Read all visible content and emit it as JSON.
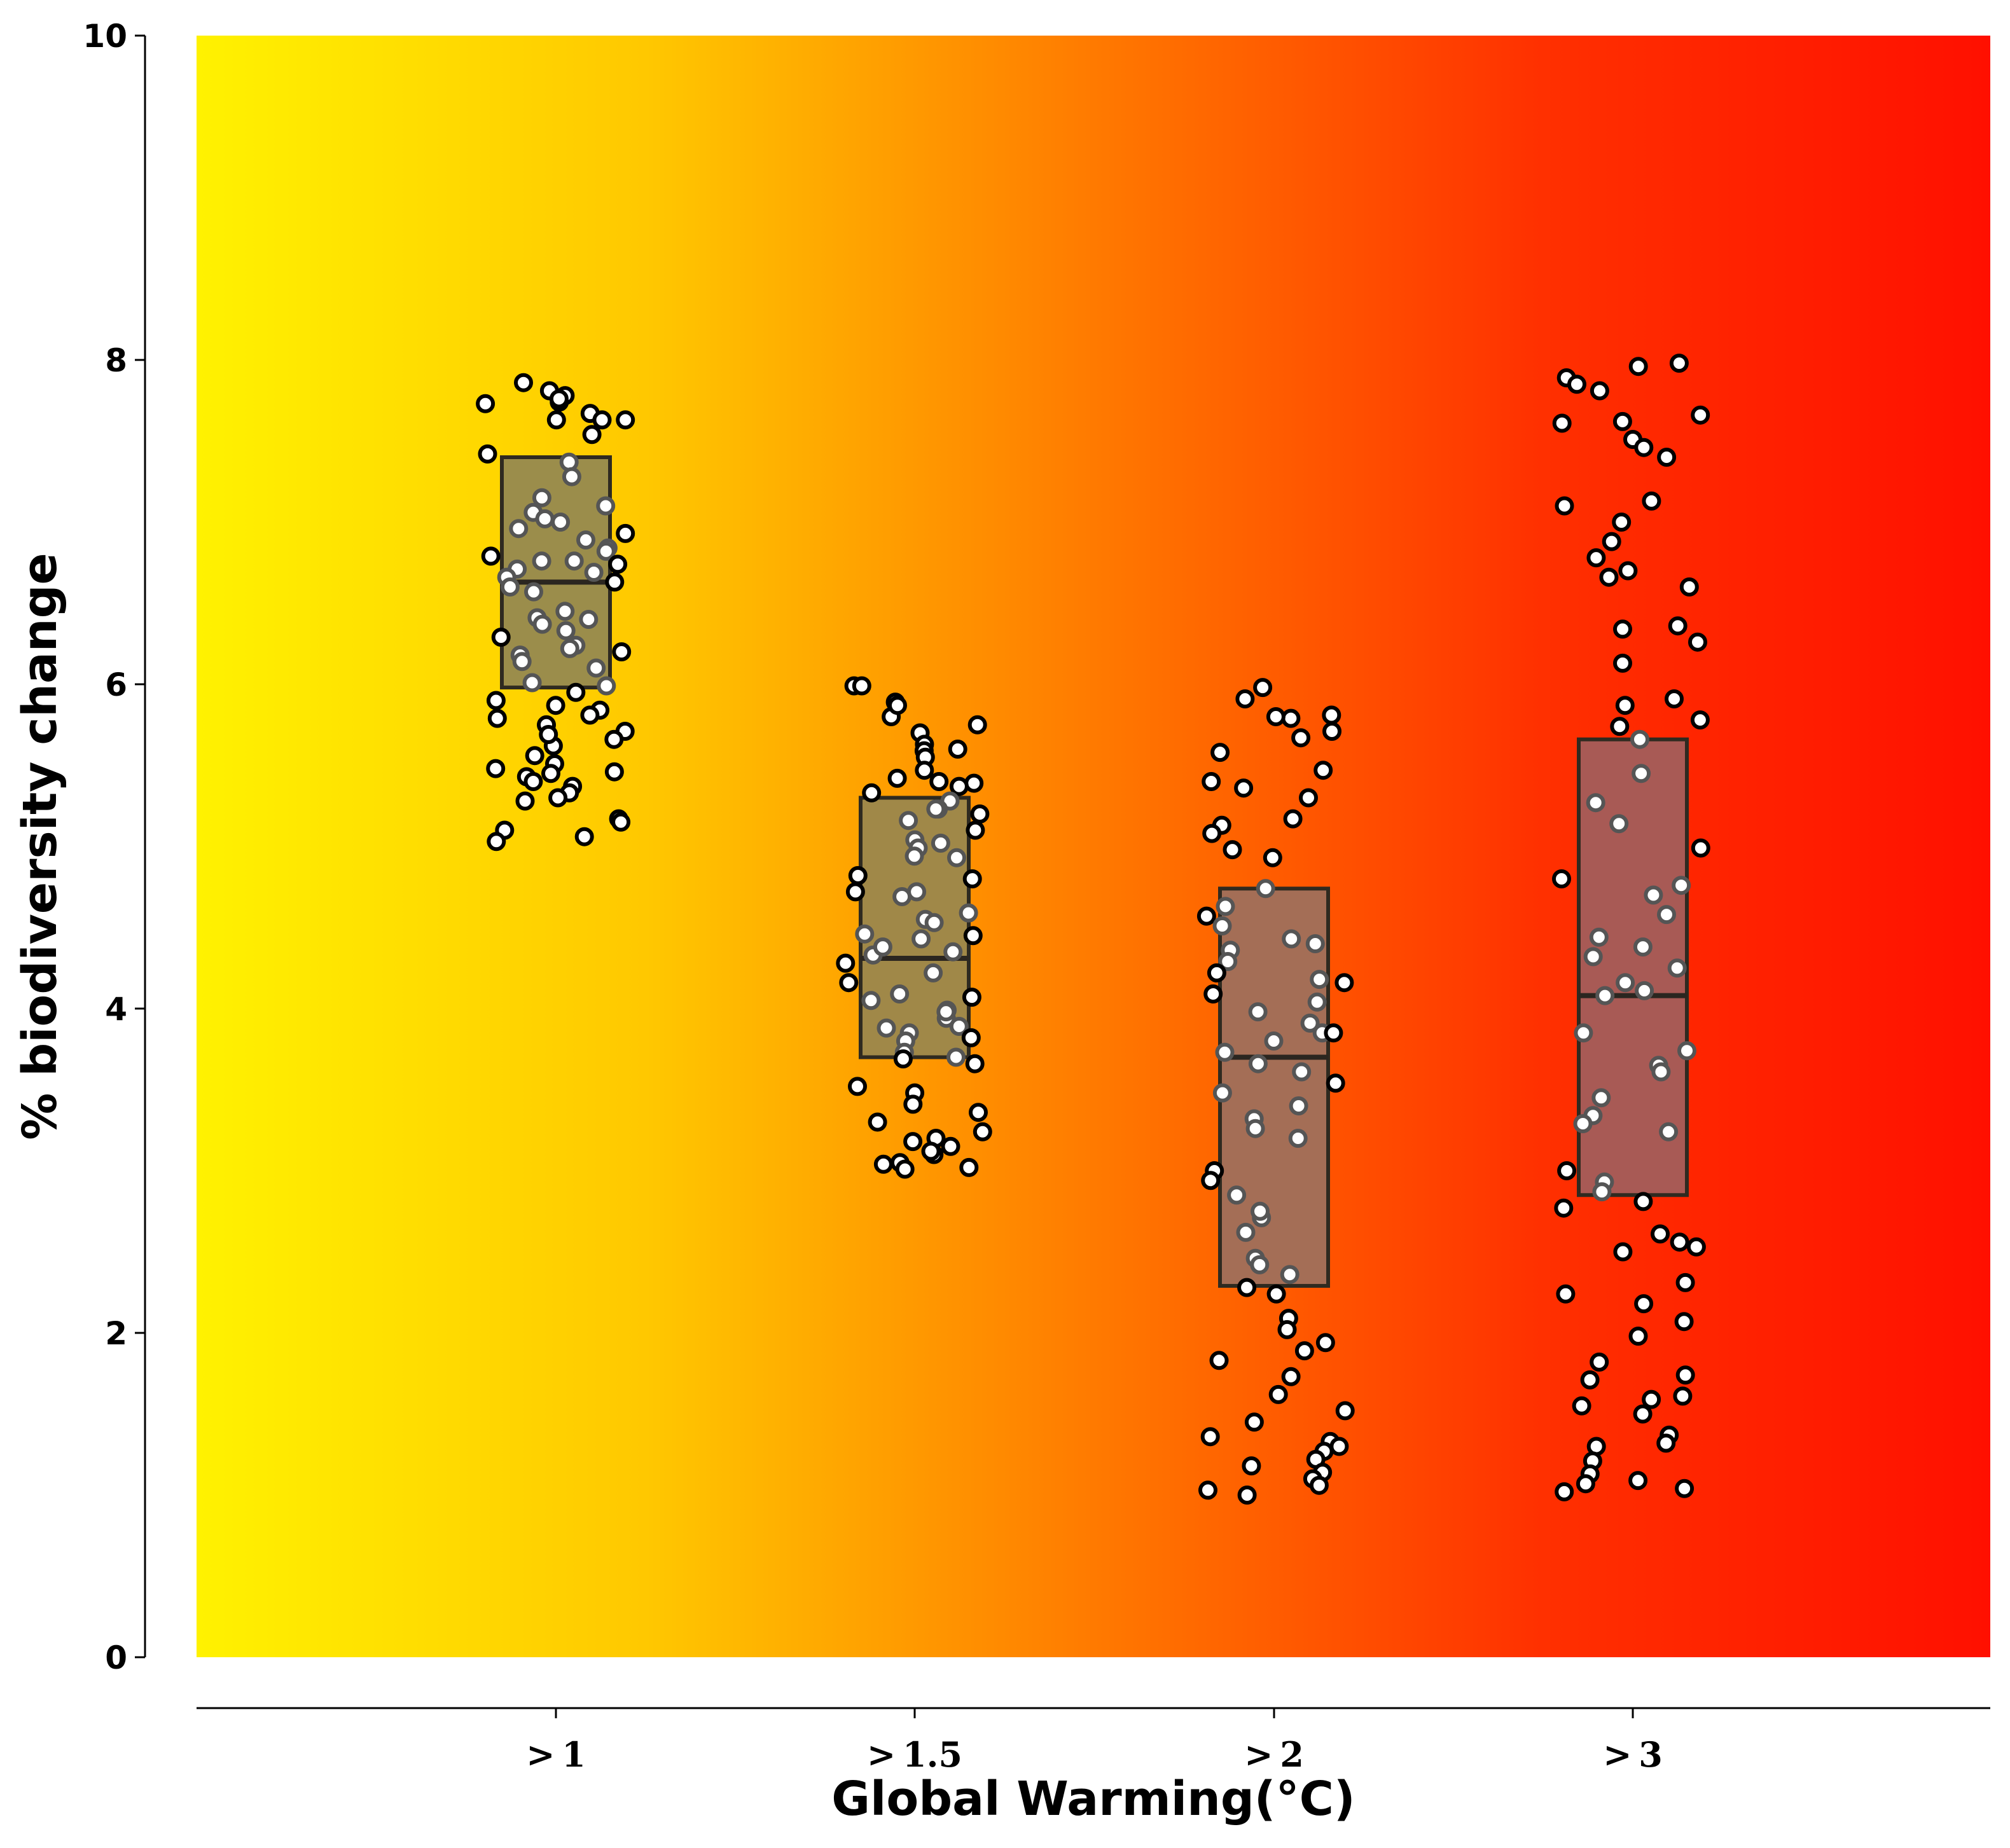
{
  "chart_data": {
    "type": "box+strip",
    "title": "",
    "xlabel": "Global Warming(°C)",
    "ylabel": "% biodiversity change",
    "ylim": [
      0,
      10
    ],
    "yticks": [
      "0",
      "2",
      "4",
      "6",
      "8",
      "10"
    ],
    "categories": [
      "> 1",
      "> 1.5",
      "> 2",
      "> 3"
    ],
    "background_gradient": [
      "#fff200",
      "#ffc800",
      "#ff7a00",
      "#ff3000",
      "#ff1000"
    ],
    "grid": false,
    "boxes": [
      {
        "category": "> 1",
        "q1": 5.98,
        "median": 6.63,
        "q3": 7.4,
        "fill": "#9b8d4b"
      },
      {
        "category": "> 1.5",
        "q1": 3.7,
        "median": 4.31,
        "q3": 5.3,
        "fill": "#a08848"
      },
      {
        "category": "> 2",
        "q1": 2.29,
        "median": 3.7,
        "q3": 4.74,
        "fill": "#a46e56"
      },
      {
        "category": "> 3",
        "q1": 2.85,
        "median": 4.08,
        "q3": 5.66,
        "fill": "#a85a55"
      }
    ],
    "points": [
      [
        7.67,
        7.78,
        7.81,
        7.86,
        7.63,
        7.54,
        7.63,
        7.74,
        7.76,
        7.42,
        7.37,
        7.28,
        7.15,
        7.1,
        7.06,
        7.02,
        6.96,
        6.93,
        6.89,
        6.84,
        6.82,
        6.79,
        6.76,
        6.74,
        6.71,
        6.69,
        6.66,
        6.63,
        6.6,
        6.57,
        6.45,
        6.41,
        6.37,
        6.33,
        6.29,
        6.24,
        6.2,
        6.18,
        6.14,
        6.1,
        5.99,
        5.95,
        5.9,
        5.87,
        5.84,
        5.81,
        5.79,
        5.75,
        5.71,
        5.66,
        5.62,
        5.56,
        5.51,
        5.48,
        5.46,
        5.43,
        5.4,
        5.37,
        5.33,
        5.3,
        5.28,
        5.17,
        5.15,
        5.1,
        5.06,
        5.03,
        7.63,
        7.0,
        6.76,
        6.22,
        5.69,
        5.45,
        7.73,
        6.4,
        6.01
      ],
      [
        5.99,
        5.89,
        5.8,
        5.75,
        5.7,
        5.63,
        5.59,
        5.55,
        5.47,
        5.42,
        5.39,
        5.37,
        5.33,
        5.28,
        5.23,
        5.2,
        5.16,
        5.1,
        5.04,
        4.99,
        4.94,
        4.82,
        4.72,
        4.69,
        4.59,
        4.55,
        4.46,
        4.43,
        4.35,
        4.28,
        4.22,
        4.16,
        4.09,
        4.05,
        3.99,
        3.94,
        3.89,
        3.85,
        3.8,
        3.73,
        3.69,
        3.52,
        3.48,
        3.41,
        3.36,
        3.3,
        3.24,
        3.2,
        3.15,
        3.1,
        3.05,
        3.01,
        5.99,
        5.87,
        5.23,
        4.8,
        4.53,
        4.33,
        4.07,
        3.82,
        3.02,
        3.18,
        3.04,
        5.6,
        5.02,
        4.72,
        4.38,
        3.98,
        3.7,
        3.12,
        5.4,
        4.93,
        4.45,
        3.88,
        3.66
      ],
      [
        5.98,
        5.91,
        5.81,
        5.79,
        5.71,
        5.67,
        5.58,
        5.47,
        5.4,
        5.36,
        5.3,
        5.17,
        5.13,
        5.08,
        4.98,
        4.93,
        4.74,
        4.63,
        4.57,
        4.51,
        4.43,
        4.4,
        4.36,
        4.29,
        4.22,
        4.16,
        4.09,
        4.04,
        3.98,
        3.91,
        3.85,
        3.8,
        3.73,
        3.66,
        3.61,
        3.54,
        3.48,
        3.4,
        3.32,
        3.26,
        3.2,
        3.0,
        2.94,
        2.85,
        2.71,
        2.62,
        2.46,
        2.42,
        2.36,
        2.28,
        2.24,
        2.09,
        2.02,
        1.94,
        1.89,
        1.83,
        1.73,
        1.62,
        1.52,
        1.45,
        1.36,
        1.33,
        1.3,
        1.27,
        1.22,
        1.18,
        1.14,
        1.1,
        1.06,
        1.03,
        1.0,
        5.8,
        4.18,
        3.85,
        2.75
      ],
      [
        7.98,
        7.96,
        7.89,
        7.85,
        7.81,
        7.66,
        7.62,
        7.61,
        7.51,
        7.46,
        7.4,
        7.13,
        7.1,
        7.0,
        6.88,
        6.78,
        6.7,
        6.66,
        6.6,
        6.36,
        6.34,
        6.26,
        6.13,
        5.91,
        5.87,
        5.78,
        5.74,
        5.66,
        5.45,
        5.27,
        5.14,
        4.99,
        4.8,
        4.76,
        4.7,
        4.58,
        4.44,
        4.38,
        4.32,
        4.25,
        4.16,
        4.11,
        4.08,
        3.85,
        3.74,
        3.65,
        3.61,
        3.45,
        3.34,
        3.29,
        3.24,
        3.0,
        2.93,
        2.87,
        2.81,
        2.77,
        2.61,
        2.56,
        2.53,
        2.5,
        2.31,
        2.24,
        2.18,
        2.07,
        1.98,
        1.82,
        1.74,
        1.71,
        1.61,
        1.59,
        1.55,
        1.5,
        1.37,
        1.32,
        1.3,
        1.21,
        1.13,
        1.09,
        1.07,
        1.04,
        1.02
      ]
    ]
  }
}
